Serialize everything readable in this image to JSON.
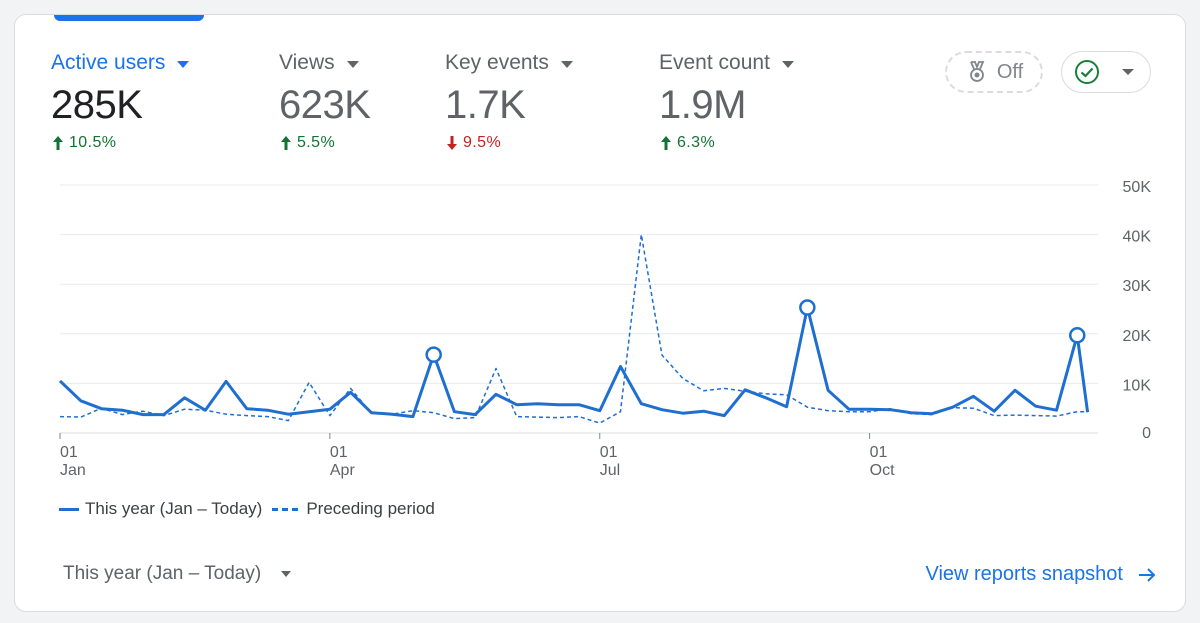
{
  "metrics": [
    {
      "label": "Active users",
      "value": "285K",
      "change": "10.5%",
      "direction": "up"
    },
    {
      "label": "Views",
      "value": "623K",
      "change": "5.5%",
      "direction": "up"
    },
    {
      "label": "Key events",
      "value": "1.7K",
      "change": "9.5%",
      "direction": "down"
    },
    {
      "label": "Event count",
      "value": "1.9M",
      "change": "6.3%",
      "direction": "up"
    }
  ],
  "toolbar": {
    "compare_label": "Off",
    "compare_icon": "medal-icon",
    "status_icon": "check-circle-icon"
  },
  "legend": {
    "current": "This year (Jan – Today)",
    "previous": "Preceding period"
  },
  "footer": {
    "date_range": "This year (Jan – Today)",
    "link": "View reports snapshot"
  },
  "colors": {
    "accent": "#1a73e8",
    "line": "#1f6fd0",
    "up": "#137333",
    "down": "#c5221f",
    "grid": "#e8eaed"
  },
  "chart_data": {
    "type": "line",
    "x_ticks": [
      {
        "week": 0,
        "day": "01",
        "month": "Jan"
      },
      {
        "week": 13,
        "day": "01",
        "month": "Apr"
      },
      {
        "week": 26,
        "day": "01",
        "month": "Jul"
      },
      {
        "week": 39,
        "day": "01",
        "month": "Oct"
      }
    ],
    "y_ticks": [
      "50K",
      "40K",
      "30K",
      "20K",
      "10K",
      "0"
    ],
    "y_tick_values": [
      50000,
      40000,
      30000,
      20000,
      10000,
      0
    ],
    "ylim": [
      0,
      50000
    ],
    "grid": true,
    "series": [
      {
        "name": "This year (Jan – Today)",
        "style": "solid",
        "x": [
          0,
          1,
          2,
          3,
          4,
          5,
          6,
          7,
          8,
          9,
          10,
          11,
          12,
          13,
          14,
          15,
          16,
          17,
          18,
          19,
          20,
          21,
          22,
          23,
          24,
          25,
          26,
          27,
          28,
          29,
          30,
          31,
          32,
          33,
          34,
          35,
          36,
          37,
          38,
          39,
          40,
          41,
          42,
          43,
          44,
          45,
          46,
          47,
          48,
          49,
          49.5
        ],
        "values": [
          10500,
          6500,
          4900,
          4600,
          3700,
          3700,
          7100,
          4600,
          10400,
          4900,
          4600,
          3800,
          4300,
          4800,
          8200,
          4100,
          3800,
          3300,
          15800,
          4300,
          3700,
          7800,
          5700,
          5900,
          5700,
          5700,
          4500,
          13400,
          5900,
          4700,
          4000,
          4400,
          3500,
          8700,
          7100,
          5300,
          25300,
          8600,
          4800,
          4800,
          4700,
          4100,
          3900,
          5200,
          7400,
          4400,
          8600,
          5400,
          4600,
          19700,
          4200
        ]
      },
      {
        "name": "Preceding period",
        "style": "dashed",
        "x": [
          0,
          1,
          2,
          3,
          4,
          5,
          6,
          7,
          8,
          9,
          10,
          11,
          12,
          13,
          14,
          15,
          16,
          17,
          18,
          19,
          20,
          21,
          22,
          23,
          24,
          25,
          26,
          27,
          28,
          29,
          30,
          31,
          32,
          33,
          34,
          35,
          36,
          37,
          38,
          39,
          40,
          41,
          42,
          43,
          44,
          45,
          46,
          47,
          48,
          49,
          49.5
        ],
        "values": [
          3300,
          3200,
          5000,
          3700,
          4400,
          3500,
          4800,
          4600,
          3800,
          3500,
          3300,
          2500,
          10200,
          3500,
          9000,
          4000,
          3800,
          4500,
          4100,
          2900,
          3100,
          13000,
          3300,
          3200,
          3100,
          3300,
          2000,
          4300,
          40000,
          15700,
          11000,
          8500,
          9000,
          8400,
          7900,
          7700,
          5200,
          4500,
          4300,
          4300,
          4900,
          3900,
          3700,
          5100,
          5000,
          3500,
          3600,
          3500,
          3400,
          4300,
          4300
        ]
      }
    ],
    "highlighted_points": [
      {
        "series": 0,
        "x": 18,
        "value": 15800
      },
      {
        "series": 0,
        "x": 36,
        "value": 25300
      },
      {
        "series": 0,
        "x": 49,
        "value": 19700
      }
    ]
  }
}
